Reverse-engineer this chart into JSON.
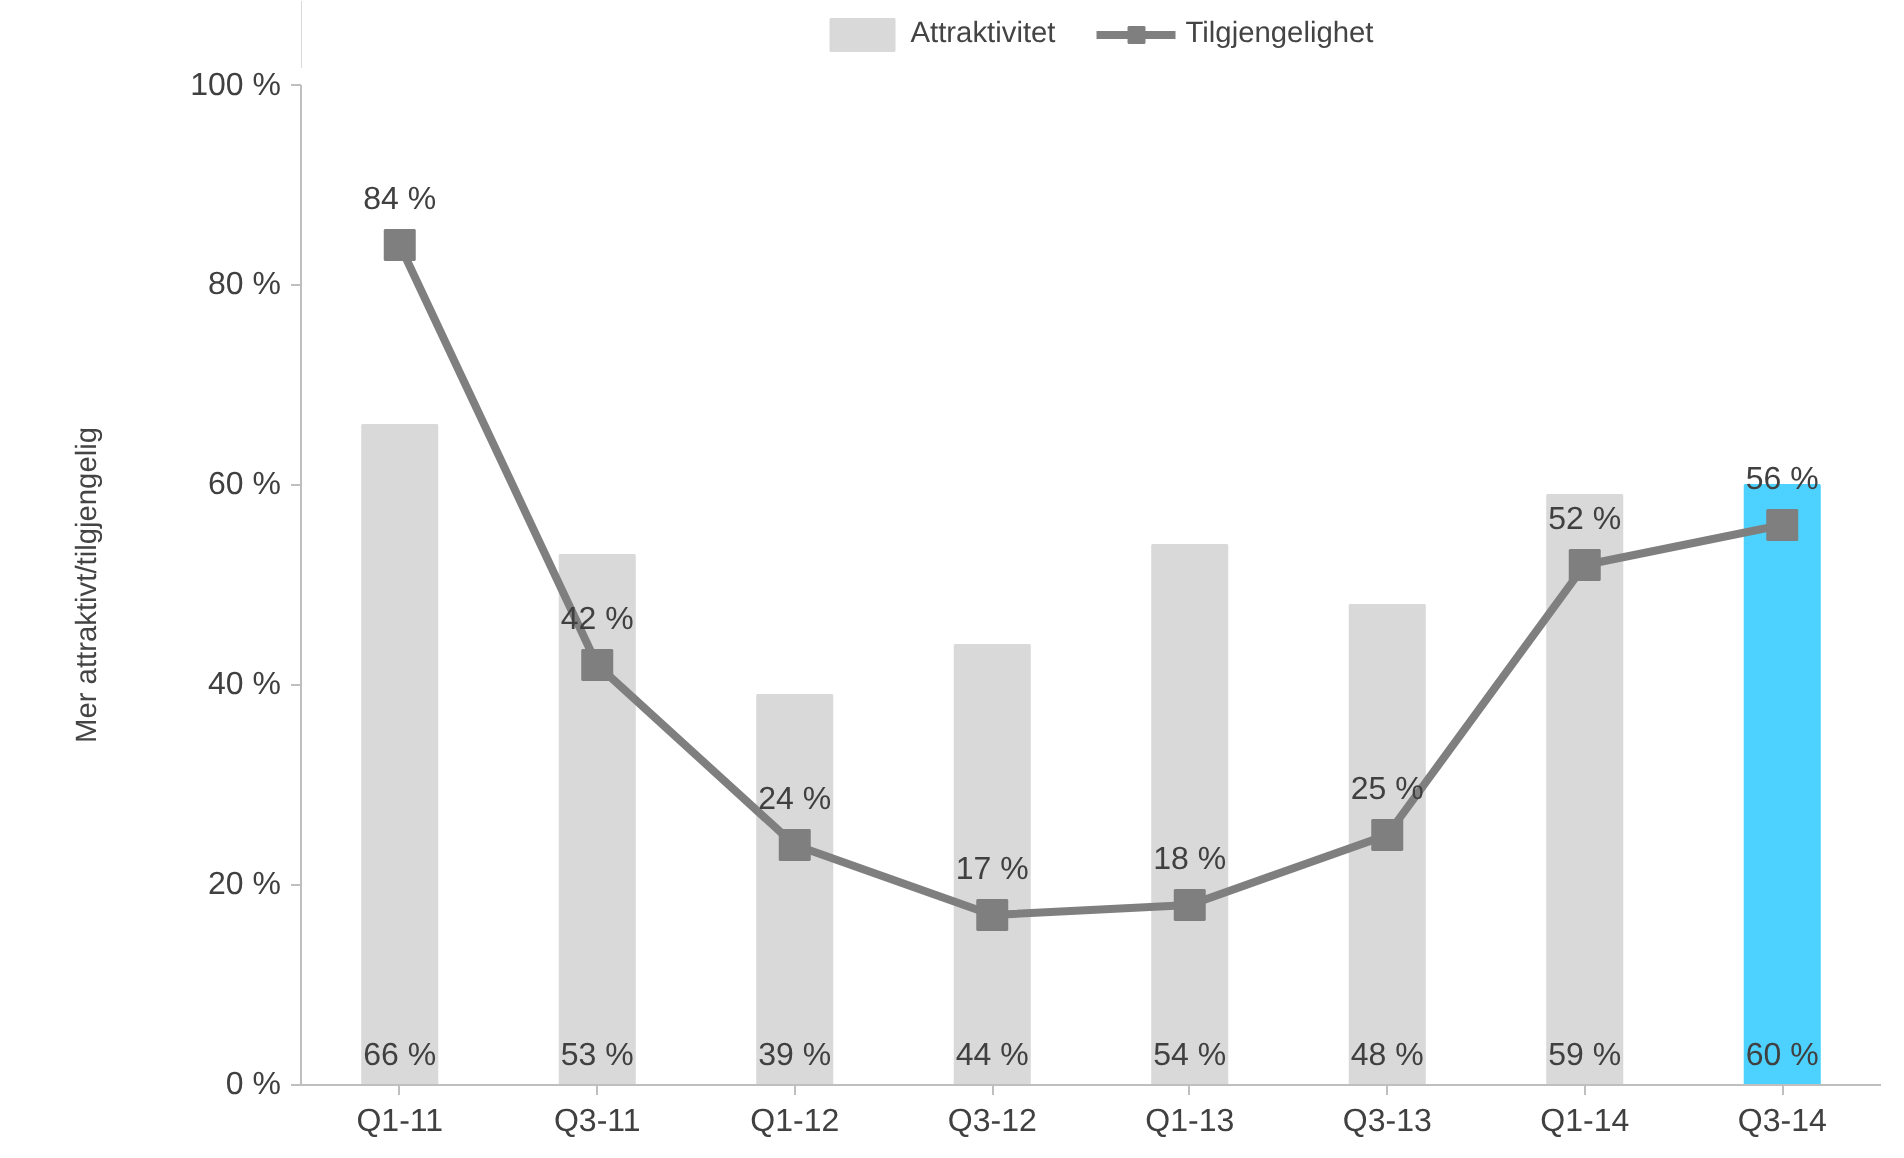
{
  "chart_data": {
    "type": "bar",
    "ylabel": "Mer attraktivt/tilgjengelig",
    "categories": [
      "Q1-11",
      "Q3-11",
      "Q1-12",
      "Q3-12",
      "Q1-13",
      "Q3-13",
      "Q1-14",
      "Q3-14"
    ],
    "series": [
      {
        "name": "Attraktivitet",
        "colors": [
          "#d9d9d9",
          "#d9d9d9",
          "#d9d9d9",
          "#d9d9d9",
          "#d9d9d9",
          "#d9d9d9",
          "#d9d9d9",
          "#4dd2ff"
        ],
        "values": [
          66,
          53,
          39,
          44,
          54,
          48,
          59,
          60
        ],
        "value_labels": [
          "66 %",
          "53 %",
          "39 %",
          "44 %",
          "54 %",
          "48 %",
          "59 %",
          "60 %"
        ]
      },
      {
        "name": "Tilgjengelighet",
        "type": "line",
        "color": "#7f7f7f",
        "marker": "square",
        "values": [
          84,
          42,
          24,
          17,
          18,
          25,
          52,
          56
        ],
        "value_labels": [
          "84 %",
          "42 %",
          "24 %",
          "17 %",
          "18 %",
          "25 %",
          "52 %",
          "56 %"
        ]
      }
    ],
    "ylim": [
      0,
      100
    ],
    "yticks": [
      {
        "value": 0,
        "label": "0 %"
      },
      {
        "value": 20,
        "label": "20 %"
      },
      {
        "value": 40,
        "label": "40 %"
      },
      {
        "value": 60,
        "label": "60 %"
      },
      {
        "value": 80,
        "label": "80 %"
      },
      {
        "value": 100,
        "label": "100 %"
      }
    ],
    "grid": false,
    "legend": "top"
  }
}
